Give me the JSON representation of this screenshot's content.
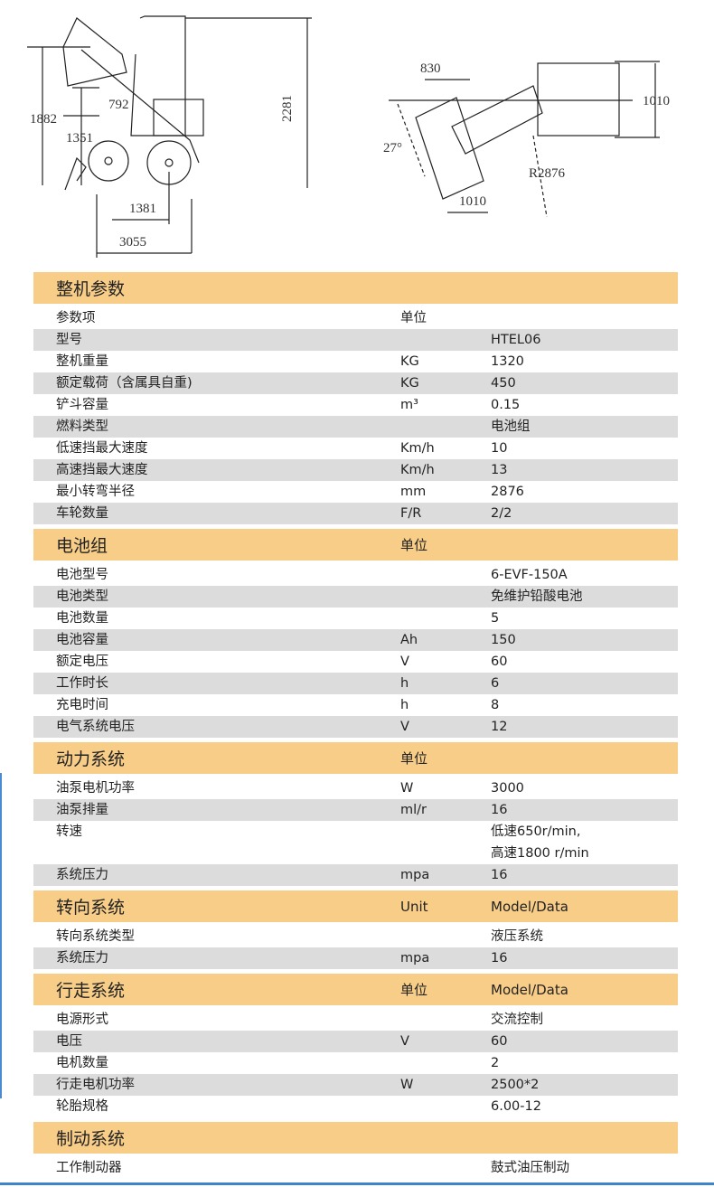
{
  "drawing": {
    "side_dims": [
      "1882",
      "1351",
      "792",
      "2281",
      "1381",
      "3055"
    ],
    "top_dims": [
      "830",
      "1010",
      "27°",
      "R2876",
      "1010"
    ]
  },
  "sections": [
    {
      "title": "整机参数",
      "unit": "",
      "data": "",
      "rows": [
        [
          "参数项",
          "单位",
          ""
        ],
        [
          "型号",
          "",
          "HTEL06"
        ],
        [
          "整机重量",
          "KG",
          "1320"
        ],
        [
          "额定载荷（含属具自重)",
          "KG",
          "450"
        ],
        [
          "铲斗容量",
          "m³",
          "0.15"
        ],
        [
          "燃料类型",
          "",
          "电池组"
        ],
        [
          "低速挡最大速度",
          "Km/h",
          "10"
        ],
        [
          "高速挡最大速度",
          "Km/h",
          "13"
        ],
        [
          "最小转弯半径",
          "mm",
          "2876"
        ],
        [
          "车轮数量",
          "F/R",
          "2/2"
        ]
      ]
    },
    {
      "title": "电池组",
      "unit": "单位",
      "data": "",
      "rows": [
        [
          "电池型号",
          "",
          "6-EVF-150A"
        ],
        [
          "电池类型",
          "",
          "免维护铅酸电池"
        ],
        [
          "电池数量",
          "",
          "5"
        ],
        [
          "电池容量",
          "Ah",
          "150"
        ],
        [
          "额定电压",
          "V",
          "60"
        ],
        [
          "工作时长",
          "h",
          "6"
        ],
        [
          "充电时间",
          "h",
          "8"
        ],
        [
          "电气系统电压",
          "V",
          "12"
        ]
      ]
    },
    {
      "title": "动力系统",
      "unit": "单位",
      "data": "",
      "rows": [
        [
          "油泵电机功率",
          "W",
          "3000"
        ],
        [
          "油泵排量",
          "ml/r",
          "16"
        ],
        [
          "转速",
          "",
          "低速650r/min,\n高速1800 r/min"
        ],
        [
          "系统压力",
          "mpa",
          "16"
        ]
      ]
    },
    {
      "title": "转向系统",
      "unit": "Unit",
      "data": "Model/Data",
      "rows": [
        [
          "转向系统类型",
          "",
          "液压系统"
        ],
        [
          "系统压力",
          "mpa",
          "16"
        ]
      ]
    },
    {
      "title": "行走系统",
      "unit": "单位",
      "data": "Model/Data",
      "rows": [
        [
          "电源形式",
          "",
          "交流控制"
        ],
        [
          "电压",
          "V",
          "60"
        ],
        [
          "电机数量",
          "",
          "2"
        ],
        [
          "行走电机功率",
          "W",
          "2500*2"
        ],
        [
          "轮胎规格",
          "",
          "6.00-12"
        ]
      ]
    },
    {
      "title": "制动系统",
      "unit": "",
      "data": "",
      "rows": [
        [
          "工作制动器",
          "",
          "鼓式油压制动"
        ]
      ]
    }
  ]
}
